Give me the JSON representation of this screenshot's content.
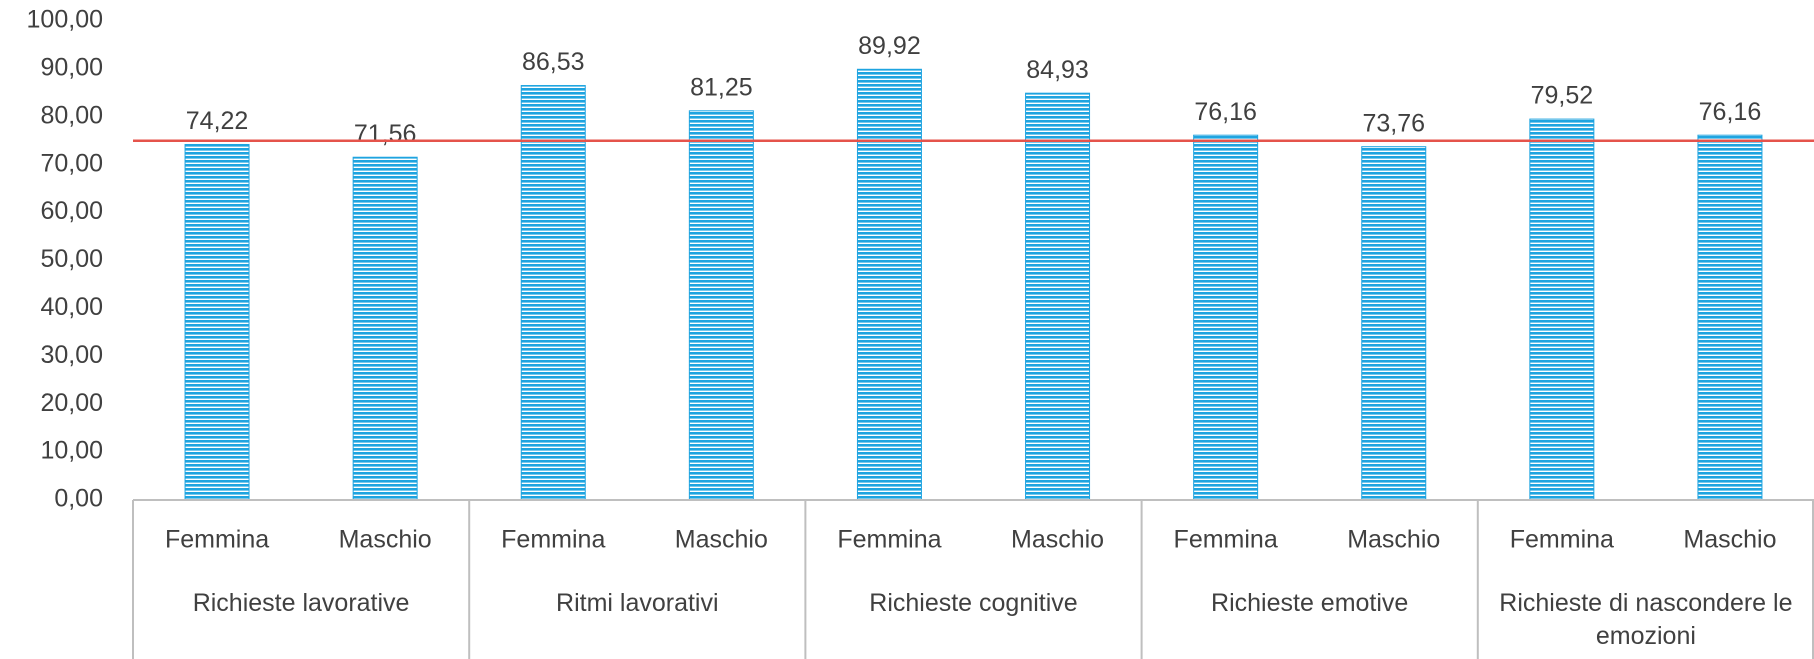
{
  "chart_data": {
    "type": "bar",
    "categories": [
      "Femmina",
      "Maschio",
      "Femmina",
      "Maschio",
      "Femmina",
      "Maschio",
      "Femmina",
      "Maschio",
      "Femmina",
      "Maschio"
    ],
    "groups": [
      "Richieste lavorative",
      "Ritmi lavorativi",
      "Richieste cognitive",
      "Richieste emotive",
      "Richieste di nascondere le emozioni"
    ],
    "values": [
      74.22,
      71.56,
      86.53,
      81.25,
      89.92,
      84.93,
      76.16,
      73.76,
      79.52,
      76.16
    ],
    "value_labels": [
      "74,22",
      "71,56",
      "86,53",
      "81,25",
      "89,92",
      "84,93",
      "76,16",
      "73,76",
      "79,52",
      "76,16"
    ],
    "color": "#1fa4e0",
    "reference_line": 75,
    "reference_color": "#e5534b",
    "ylim": [
      0,
      100
    ],
    "yticks": [
      {
        "value": 0,
        "label": "0,00"
      },
      {
        "value": 10,
        "label": "10,00"
      },
      {
        "value": 20,
        "label": "20,00"
      },
      {
        "value": 30,
        "label": "30,00"
      },
      {
        "value": 40,
        "label": "40,00"
      },
      {
        "value": 50,
        "label": "50,00"
      },
      {
        "value": 60,
        "label": "60,00"
      },
      {
        "value": 70,
        "label": "70,00"
      },
      {
        "value": 80,
        "label": "80,00"
      },
      {
        "value": 90,
        "label": "90,00"
      },
      {
        "value": 100,
        "label": "100,00"
      }
    ],
    "grid": false
  }
}
